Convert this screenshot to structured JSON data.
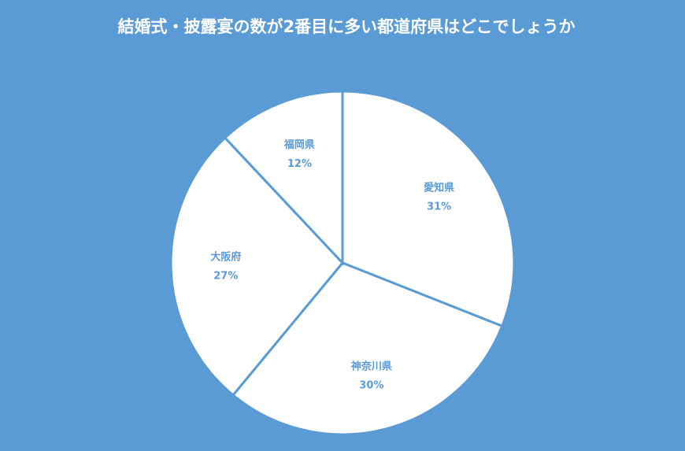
{
  "chart_data": {
    "type": "pie",
    "title": "結婚式・披露宴の数が2番目に多い都道府県はどこでしょうか",
    "categories": [
      "愛知県",
      "神奈川県",
      "大阪府",
      "福岡県"
    ],
    "values": [
      31,
      30,
      27,
      12
    ],
    "value_labels": [
      "31%",
      "30%",
      "27%",
      "12%"
    ],
    "start": "top",
    "direction": "clockwise",
    "legend": "none",
    "colors": {
      "background": "#5B9BD5",
      "slice_fill": "#FFFFFF",
      "slice_border": "#5B9BD5",
      "label": "#5B9BD5",
      "title": "#FFFFFF"
    }
  }
}
